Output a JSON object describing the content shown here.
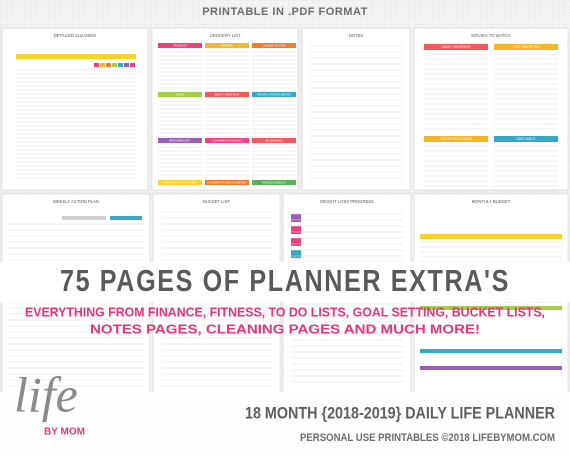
{
  "header": {
    "title": "PRINTABLE IN .PDF FORMAT"
  },
  "pages": [
    {
      "title": "DETAILED CLEANING"
    },
    {
      "title": "GROCERY LIST",
      "sections": [
        "PRODUCE",
        "FROZEN",
        "CANNED GOODS",
        "DAIRY",
        "MEAT & SEAFOOD",
        "GRAINS, PASTA & BEANS",
        "BREAD/BAKERY",
        "CONDIMENTS/SAUCES",
        "BEVERAGES",
        "PAPER/PLASTIC GOODS",
        "LAUNDRY/HOUSE CLEANING",
        "MISCELLANEOUS"
      ]
    },
    {
      "title": "NOTES"
    },
    {
      "title": "MOVIES TO WATCH",
      "sections": [
        "FAMILY FAVORITES",
        "KIDS' FAVORITES",
        "GUILTY PLEASURES",
        "DATE NIGHT"
      ]
    },
    {
      "title": "WEEKLY ACTION PLAN"
    },
    {
      "title": "BUCKET LIST"
    },
    {
      "title": "WEIGHT LOSS PROGRESS"
    },
    {
      "title": "MONTHLY BUDGET"
    }
  ],
  "banner": {
    "headline": "75 PAGES OF PLANNER EXTRA'S",
    "lines": [
      "EVERYTHING FROM FINANCE, FITNESS, TO DO LISTS, GOAL SETTING, BUCKET LISTS,",
      "NOTES PAGES, CLEANING PAGES AND MUCH MORE!"
    ]
  },
  "footer": {
    "logo_word": "life",
    "logo_by": "BY MOM",
    "title": "18 MONTH {2018-2019} DAILY LIFE PLANNER",
    "subtitle": "PERSONAL USE PRINTABLES ©2018 LIFEBYMOM.COM"
  }
}
